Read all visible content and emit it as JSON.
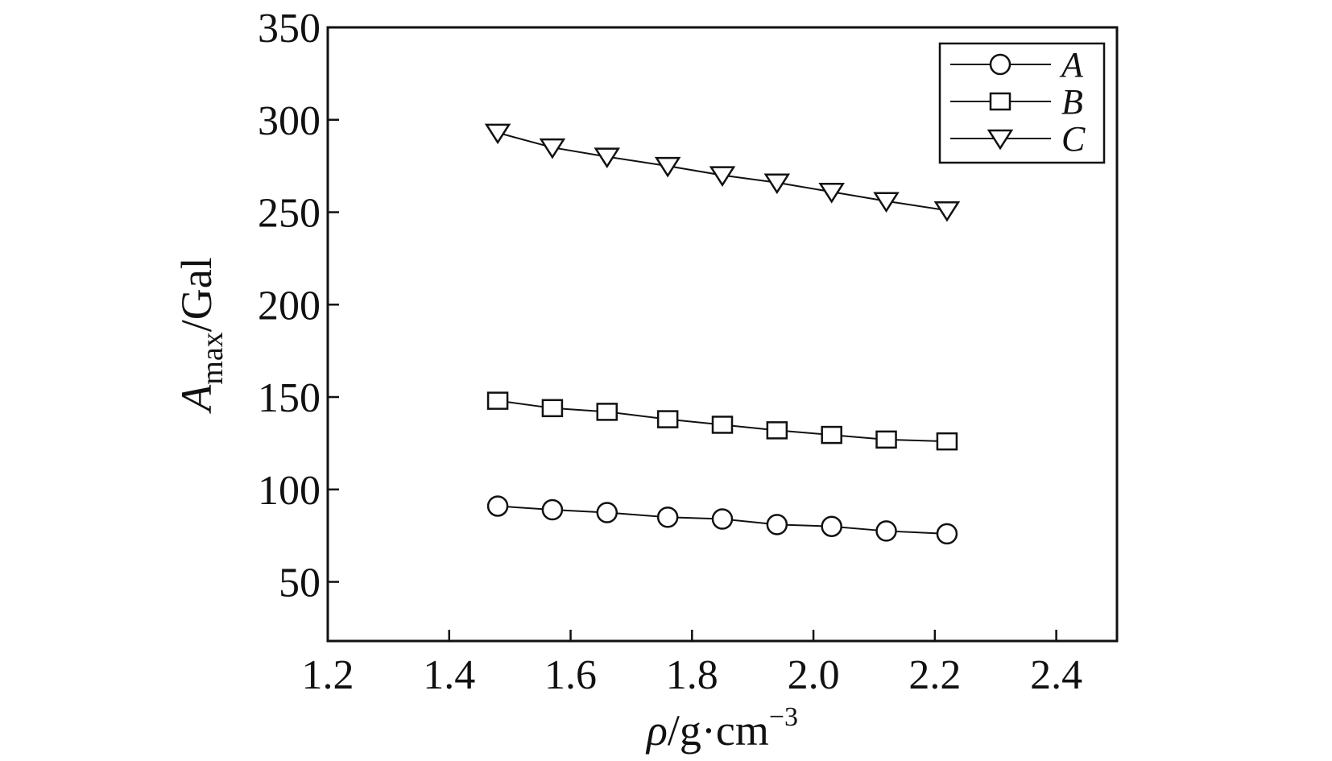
{
  "chart_data": {
    "type": "line",
    "xlabel": {
      "main": "ρ",
      "rest": "/g·cm",
      "sup": "−3"
    },
    "ylabel": {
      "main": "A",
      "sub": "max",
      "rest": "/Gal"
    },
    "xlim": [
      1.2,
      2.5
    ],
    "ylim": [
      18,
      350
    ],
    "xticks": [
      "1.2",
      "1.4",
      "1.6",
      "1.8",
      "2.0",
      "2.2",
      "2.4"
    ],
    "yticks": [
      "50",
      "100",
      "150",
      "200",
      "250",
      "300",
      "350"
    ],
    "legend_position": "top-right",
    "x": [
      1.48,
      1.57,
      1.66,
      1.76,
      1.85,
      1.94,
      2.03,
      2.12,
      2.22
    ],
    "series": [
      {
        "name": "A",
        "marker": "circle",
        "values": [
          91,
          89,
          87.5,
          85,
          84,
          81,
          80,
          77.5,
          76
        ]
      },
      {
        "name": "B",
        "marker": "square",
        "values": [
          148,
          144,
          142,
          138,
          135,
          132,
          129.5,
          127,
          126
        ]
      },
      {
        "name": "C",
        "marker": "triangle-down",
        "values": [
          293,
          285,
          280,
          275,
          270,
          266,
          261,
          256,
          251
        ]
      }
    ]
  }
}
